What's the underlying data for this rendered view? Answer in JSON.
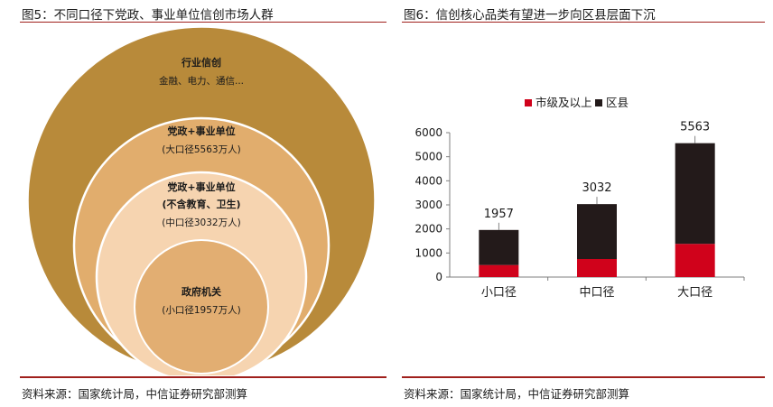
{
  "left": {
    "title": "图5：不同口径下党政、事业单位信创市场人群",
    "source": "资料来源：国家统计局，中信证券研究部测算",
    "circles": [
      {
        "title": "行业信创",
        "sub": "金融、电力、通信...",
        "color": "#b88a3a"
      },
      {
        "title": "党政+事业单位",
        "sub": "(大口径5563万人)",
        "color": "#e1ad6d"
      },
      {
        "title": "党政+事业单位",
        "title2": "(不含教育、卫生)",
        "sub": "(中口径3032万人)",
        "color": "#f6d4b0"
      },
      {
        "title": "政府机关",
        "sub": "(小口径1957万人)",
        "color": "#e2ae72"
      }
    ]
  },
  "right": {
    "title": "图6：信创核心品类有望进一步向区县层面下沉",
    "source": "资料来源：国家统计局，中信证券研究部测算"
  },
  "chart_data": {
    "type": "bar",
    "stacked": true,
    "categories": [
      "小口径",
      "中口径",
      "大口径"
    ],
    "series": [
      {
        "name": "市级及以上",
        "values": [
          500,
          750,
          1380
        ],
        "color": "#d0021b"
      },
      {
        "name": "区县",
        "values": [
          1457,
          2282,
          4183
        ],
        "color": "#231a1a"
      }
    ],
    "totals": [
      1957,
      3032,
      5563
    ],
    "ylim": [
      0,
      6000
    ],
    "yticks": [
      0,
      1000,
      2000,
      3000,
      4000,
      5000,
      6000
    ],
    "legend_position": "top",
    "grid": false
  }
}
